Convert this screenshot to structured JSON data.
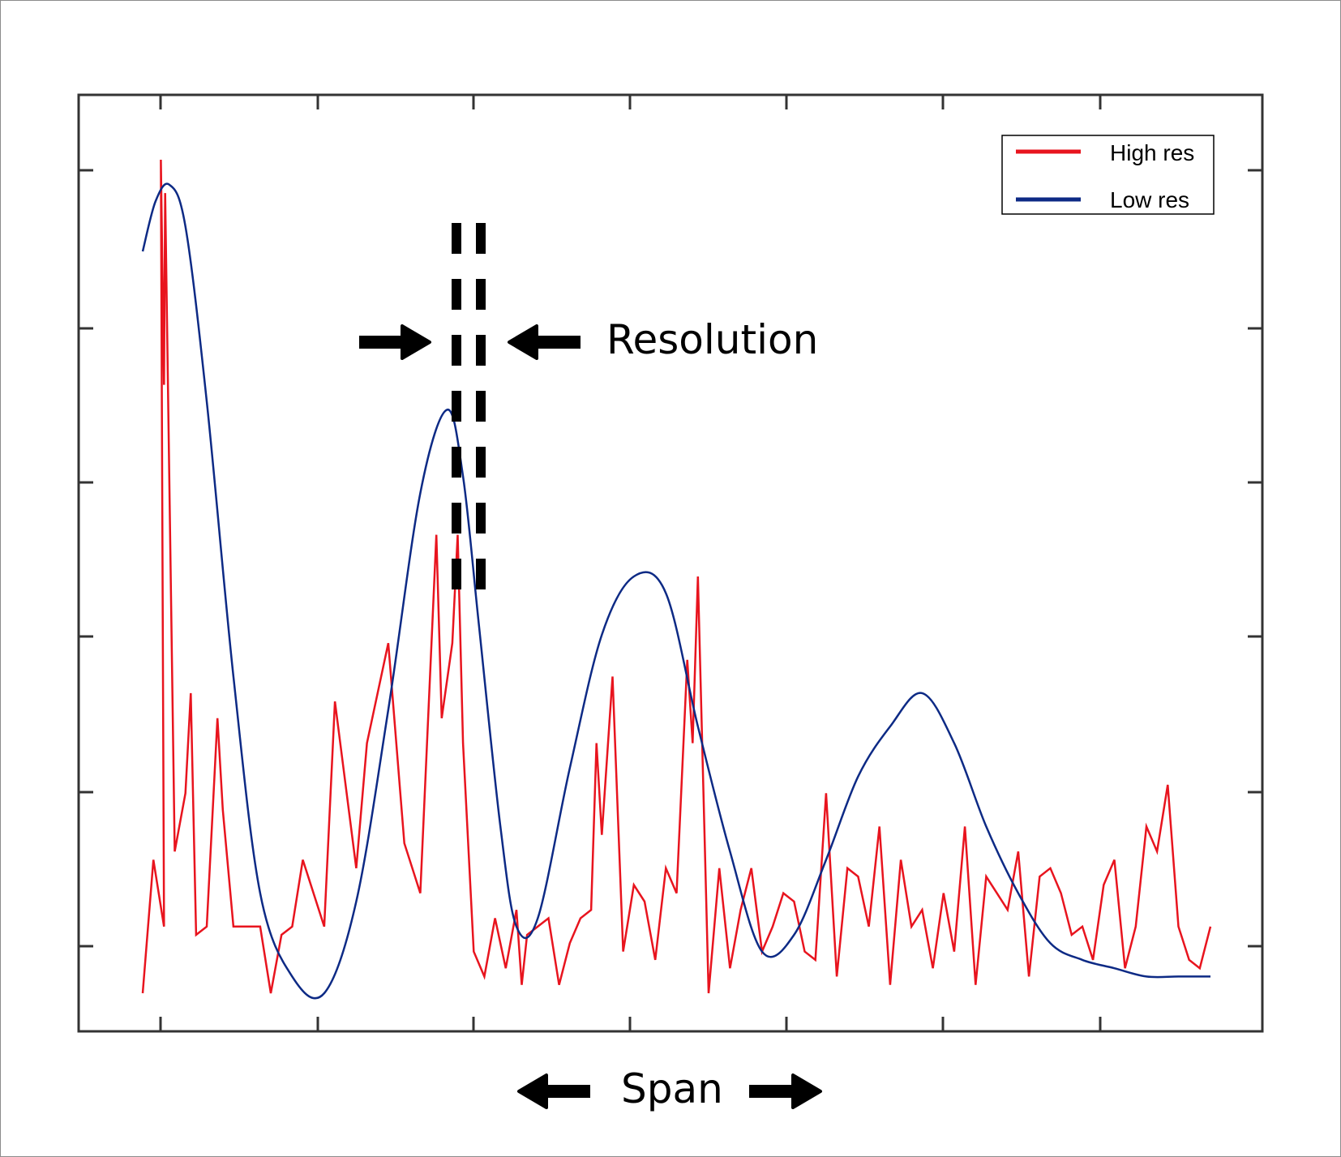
{
  "chart_data": {
    "type": "line",
    "title": "",
    "xlabel": "",
    "ylabel": "",
    "xlim": [
      0,
      100
    ],
    "ylim": [
      0,
      100
    ],
    "grid": false,
    "legend": {
      "placement": "top-right"
    },
    "series": [
      {
        "name": "High res",
        "color": "#e8141e",
        "x": [
          0,
          1,
          2,
          1.7,
          2.0,
          2.1,
          3.0,
          4.0,
          4.5,
          5.0,
          6.0,
          7.0,
          7.5,
          8.5,
          10.0,
          11.0,
          12.0,
          13.0,
          14.0,
          15.0,
          17.0,
          18.0,
          20.0,
          21.0,
          23.0,
          24.5,
          26.0,
          27.5,
          28.0,
          29.0,
          29.5,
          30.0,
          31.0,
          32.0,
          33.0,
          34.0,
          35.0,
          35.5,
          36.0,
          37.0,
          38.0,
          39.0,
          40.0,
          41.0,
          42.0,
          42.5,
          43.0,
          44.0,
          45.0,
          46.0,
          47.0,
          48.0,
          49.0,
          50.0,
          51.0,
          51.5,
          52.0,
          53.0,
          54.0,
          55.0,
          56.0,
          57.0,
          58.0,
          59.0,
          60.0,
          61.0,
          62.0,
          63.0,
          64.0,
          65.0,
          66.0,
          67.0,
          68.0,
          69.0,
          70.0,
          71.0,
          72.0,
          73.0,
          74.0,
          75.0,
          76.0,
          77.0,
          78.0,
          79.0,
          80.0,
          81.0,
          82.0,
          83.0,
          84.0,
          85.0,
          86.0,
          87.0,
          88.0,
          89.0,
          90.0,
          91.0,
          92.0,
          93.0,
          94.0,
          95.0,
          96.0,
          97.0,
          98.0,
          99.0,
          100.0
        ],
        "y": [
          0,
          16,
          8,
          100,
          73,
          96,
          17,
          24,
          36,
          7,
          8,
          33,
          22,
          8,
          8,
          8,
          0,
          7,
          8,
          16,
          8,
          35,
          15,
          30,
          42,
          18,
          12,
          55,
          33,
          42,
          55,
          30,
          5,
          2,
          9,
          3,
          10,
          1,
          7,
          8,
          9,
          1,
          6,
          9,
          10,
          30,
          19,
          38,
          5,
          13,
          11,
          4,
          15,
          12,
          40,
          30,
          50,
          0,
          15,
          3,
          10,
          15,
          5,
          8,
          12,
          11,
          5,
          4,
          24,
          2,
          15,
          14,
          8,
          20,
          1,
          16,
          8,
          10,
          3,
          12,
          5,
          20,
          1,
          14,
          12,
          10,
          17,
          2,
          14,
          15,
          12,
          7,
          8,
          4,
          13,
          16,
          3,
          8,
          20,
          17,
          25,
          8,
          4,
          3,
          8
        ]
      },
      {
        "name": "Low res",
        "color": "#0d2a85",
        "x": [
          0,
          1.2,
          2.5,
          4.0,
          6.0,
          8.5,
          11.0,
          14.0,
          17.0,
          20.0,
          23.0,
          26.0,
          28.5,
          30.0,
          31.5,
          33.5,
          35.0,
          37.0,
          40.0,
          43.0,
          46.0,
          49.0,
          52.0,
          55.0,
          58.0,
          61.0,
          64.0,
          67.0,
          70.0,
          73.0,
          76.0,
          79.0,
          82.0,
          85.0,
          88.0,
          91.0,
          94.0,
          97.0,
          100.0
        ],
        "y": [
          89,
          95,
          97,
          92,
          71,
          38,
          12,
          2,
          0,
          11,
          34,
          60,
          70,
          62,
          44,
          20,
          8,
          9,
          27,
          43,
          50,
          48,
          32,
          17,
          5,
          7,
          16,
          26,
          32,
          36,
          30,
          20,
          12,
          6,
          4,
          3,
          2,
          2,
          2
        ]
      }
    ]
  },
  "annotations": {
    "resolution_label": "Resolution",
    "span_label": "Span"
  }
}
